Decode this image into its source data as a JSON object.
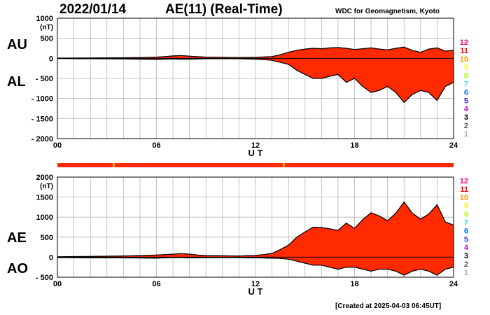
{
  "header": {
    "date": "2022/01/14",
    "title": "AE(11) (Real-Time)",
    "source": "WDC for Geomagnetism, Kyoto",
    "created": "[Created at 2025-04-03 06:45UT]"
  },
  "levels": {
    "labels": [
      "12",
      "11",
      "10",
      "9",
      "8",
      "7",
      "6",
      "5",
      "4",
      "3",
      "2",
      "1"
    ],
    "colors": [
      "#ff0080",
      "#ff0000",
      "#ff9900",
      "#ffee33",
      "#aaff00",
      "#33ddff",
      "#0077ff",
      "#3333cc",
      "#cc00cc",
      "#000000",
      "#555555",
      "#aaaaaa"
    ]
  },
  "quality_bar": {
    "color": "#ff2a00",
    "mark_color": "#e8c060",
    "marks_ut": [
      3.4,
      13.7
    ]
  },
  "chart_data": [
    {
      "type": "area",
      "unit": "(nT)",
      "xlabel": "U T",
      "series_labels": [
        "AU",
        "AL"
      ],
      "xlim": [
        0,
        24
      ],
      "ylim": [
        -2000,
        1000
      ],
      "yticks": [
        1000,
        500,
        0,
        -500,
        -1000,
        -1500,
        -2000
      ],
      "ytick_labels": [
        "1000",
        "500",
        "0",
        "- 500",
        "- 1000",
        "- 1500",
        "- 2000"
      ],
      "xticks": [
        0,
        6,
        12,
        18,
        24
      ],
      "xtick_labels": [
        "00",
        "06",
        "12",
        "18",
        "24"
      ],
      "grid": true,
      "fill_color": "#ff2a00",
      "ut": [
        0,
        1,
        2,
        3,
        4,
        5,
        6,
        6.5,
        7,
        7.5,
        8,
        8.5,
        9,
        10,
        11,
        12,
        12.5,
        13,
        13.5,
        14,
        14.5,
        15,
        15.5,
        16,
        16.5,
        17,
        17.5,
        18,
        18.5,
        19,
        19.5,
        20,
        20.5,
        21,
        21.5,
        22,
        22.5,
        23,
        23.5,
        24
      ],
      "upper": [
        5,
        8,
        10,
        12,
        15,
        20,
        30,
        45,
        60,
        70,
        55,
        40,
        30,
        25,
        20,
        25,
        35,
        45,
        90,
        150,
        200,
        230,
        250,
        240,
        260,
        270,
        250,
        220,
        240,
        260,
        230,
        210,
        250,
        280,
        200,
        150,
        230,
        260,
        180,
        200
      ],
      "lower": [
        -5,
        -8,
        -10,
        -12,
        -15,
        -20,
        -25,
        -20,
        -15,
        -20,
        -20,
        -15,
        -10,
        -10,
        -10,
        -20,
        -30,
        -50,
        -100,
        -150,
        -300,
        -400,
        -500,
        -500,
        -450,
        -400,
        -600,
        -500,
        -700,
        -850,
        -800,
        -700,
        -850,
        -1100,
        -900,
        -800,
        -850,
        -1050,
        -700,
        -600
      ]
    },
    {
      "type": "area",
      "unit": "(nT)",
      "xlabel": "U T",
      "series_labels": [
        "AE",
        "AO"
      ],
      "xlim": [
        0,
        24
      ],
      "ylim": [
        -500,
        2000
      ],
      "yticks": [
        2000,
        1500,
        1000,
        500,
        0,
        -500
      ],
      "ytick_labels": [
        "2000",
        "1500",
        "1000",
        "500",
        "0",
        "- 500"
      ],
      "xticks": [
        0,
        6,
        12,
        18,
        24
      ],
      "xtick_labels": [
        "00",
        "06",
        "12",
        "18",
        "24"
      ],
      "grid": true,
      "fill_color": "#ff2a00",
      "ut": [
        0,
        1,
        2,
        3,
        4,
        5,
        6,
        6.5,
        7,
        7.5,
        8,
        8.5,
        9,
        10,
        11,
        12,
        12.5,
        13,
        13.5,
        14,
        14.5,
        15,
        15.5,
        16,
        16.5,
        17,
        17.5,
        18,
        18.5,
        19,
        19.5,
        20,
        20.5,
        21,
        21.5,
        22,
        22.5,
        23,
        23.5,
        24
      ],
      "upper": [
        10,
        15,
        20,
        25,
        30,
        40,
        55,
        65,
        75,
        90,
        75,
        55,
        40,
        35,
        30,
        45,
        65,
        95,
        190,
        300,
        500,
        630,
        750,
        740,
        710,
        670,
        850,
        720,
        940,
        1110,
        1030,
        910,
        1100,
        1380,
        1100,
        950,
        1080,
        1310,
        880,
        800
      ],
      "lower": [
        -10,
        -12,
        -15,
        -15,
        -18,
        -20,
        -25,
        -15,
        -10,
        -10,
        -15,
        -15,
        -12,
        -10,
        -10,
        -15,
        -20,
        -25,
        -30,
        -50,
        -100,
        -150,
        -200,
        -200,
        -250,
        -300,
        -250,
        -250,
        -300,
        -350,
        -300,
        -300,
        -350,
        -450,
        -350,
        -300,
        -350,
        -450,
        -300,
        -250
      ]
    }
  ]
}
